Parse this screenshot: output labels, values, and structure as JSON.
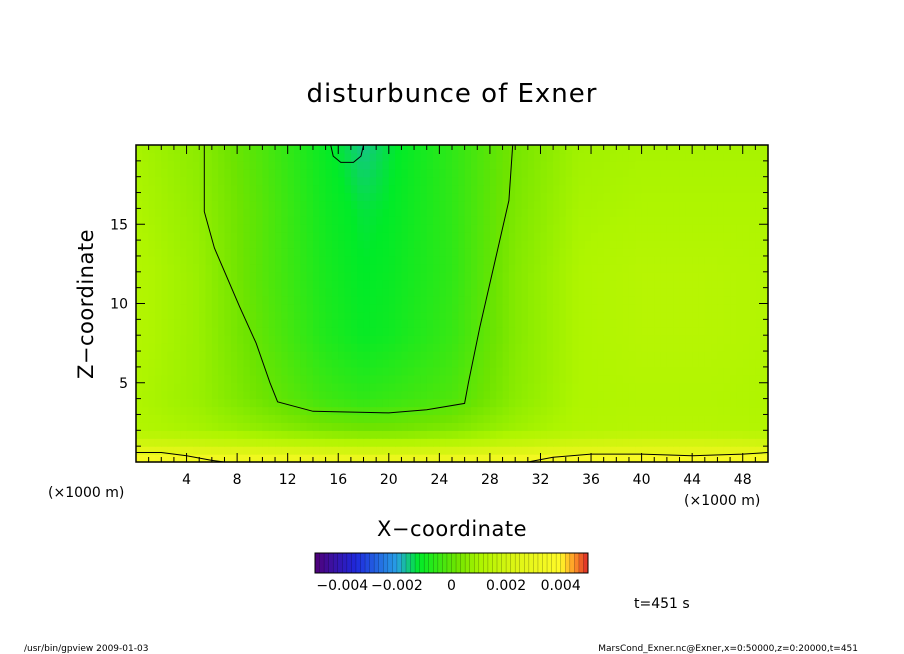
{
  "chart_data": {
    "type": "heatmap",
    "title": "disturbunce of Exner",
    "xlabel": "X−coordinate",
    "ylabel": "Z−coordinate",
    "x_unit_label": "(×1000 m)",
    "z_unit_label": "(×1000 m)",
    "xlim": [
      0,
      50
    ],
    "ylim": [
      0,
      20
    ],
    "x_tick_values": [
      4,
      8,
      12,
      16,
      20,
      24,
      28,
      32,
      36,
      40,
      44,
      48
    ],
    "x_tick_labels": [
      "4",
      "8",
      "12",
      "16",
      "20",
      "24",
      "28",
      "32",
      "36",
      "40",
      "44",
      "48"
    ],
    "y_tick_values": [
      5,
      10,
      15
    ],
    "y_tick_labels": [
      "5",
      "10",
      "15"
    ],
    "colorbar": {
      "range": [
        -0.005,
        0.005
      ],
      "tick_values": [
        -0.004,
        -0.002,
        0,
        0.002,
        0.004
      ],
      "tick_labels": [
        "−0.004",
        "−0.002",
        "0",
        "0.002",
        "0.004"
      ]
    },
    "field_description_samples": {
      "columns_x": [
        0,
        5,
        10,
        15,
        18,
        20,
        25,
        30,
        35,
        40,
        45,
        50
      ],
      "rows_z": [
        0,
        1,
        2,
        4,
        8,
        12,
        16,
        20
      ],
      "values": [
        [
          0.004,
          0.0038,
          0.0037,
          0.0036,
          0.0035,
          0.0035,
          0.0036,
          0.0038,
          0.004,
          0.0041,
          0.0041,
          0.004
        ],
        [
          0.0022,
          0.002,
          0.0018,
          0.0016,
          0.0015,
          0.0015,
          0.0016,
          0.0019,
          0.0022,
          0.0023,
          0.0023,
          0.0022
        ],
        [
          0.0012,
          0.001,
          0.0007,
          0.0004,
          0.0003,
          0.0003,
          0.0005,
          0.0009,
          0.0012,
          0.0013,
          0.0013,
          0.0012
        ],
        [
          0.0011,
          0.0008,
          0.0002,
          -0.0004,
          -0.0006,
          -0.0005,
          -0.0002,
          0.0006,
          0.0011,
          0.0012,
          0.0012,
          0.0011
        ],
        [
          0.0012,
          0.0008,
          0.0,
          -0.0008,
          -0.0011,
          -0.001,
          -0.0005,
          0.0005,
          0.0011,
          0.0013,
          0.0013,
          0.0012
        ],
        [
          0.0012,
          0.0008,
          -0.0001,
          -0.0009,
          -0.0012,
          -0.0011,
          -0.0006,
          0.0005,
          0.0011,
          0.0013,
          0.0013,
          0.0012
        ],
        [
          0.0011,
          0.0007,
          -0.0001,
          -0.001,
          -0.0013,
          -0.0012,
          -0.0006,
          0.0004,
          0.001,
          0.0011,
          0.0011,
          0.0011
        ],
        [
          0.001,
          0.0006,
          -0.0002,
          -0.0011,
          -0.0016,
          -0.0013,
          -0.0006,
          0.0003,
          0.0009,
          0.001,
          0.001,
          0.001
        ]
      ]
    },
    "contours": [
      {
        "level": 0,
        "points": [
          [
            5.4,
            20
          ],
          [
            5.4,
            15.8
          ],
          [
            6.2,
            13.5
          ],
          [
            8.2,
            9.8
          ],
          [
            9.5,
            7.5
          ],
          [
            10.6,
            5.0
          ],
          [
            11.2,
            3.8
          ],
          [
            14.0,
            3.2
          ],
          [
            20.0,
            3.1
          ],
          [
            23.0,
            3.3
          ],
          [
            26.0,
            3.7
          ],
          [
            26.3,
            5.0
          ],
          [
            27.2,
            8.5
          ],
          [
            28.5,
            13.0
          ],
          [
            29.5,
            16.5
          ],
          [
            29.8,
            20
          ]
        ]
      },
      {
        "level": -0.0015,
        "points": [
          [
            15.4,
            20
          ],
          [
            15.6,
            19.3
          ],
          [
            16.2,
            18.9
          ],
          [
            17.2,
            18.9
          ],
          [
            17.8,
            19.3
          ],
          [
            18.0,
            20
          ]
        ]
      },
      {
        "level": 0.002,
        "points": [
          [
            0,
            0.6
          ],
          [
            2,
            0.6
          ],
          [
            4,
            0.4
          ],
          [
            6,
            0.1
          ],
          [
            7,
            0.0
          ]
        ]
      },
      {
        "level": 0.002,
        "points": [
          [
            31,
            0.0
          ],
          [
            33,
            0.3
          ],
          [
            36,
            0.5
          ],
          [
            40,
            0.5
          ],
          [
            44,
            0.4
          ],
          [
            48,
            0.5
          ],
          [
            50,
            0.6
          ]
        ]
      }
    ]
  },
  "time_label": "t=451 s",
  "footer": {
    "left": "/usr/bin/gpview   2009-01-03",
    "right": "MarsCond_Exner.nc@Exner,x=0:50000,z=0:20000,t=451"
  }
}
